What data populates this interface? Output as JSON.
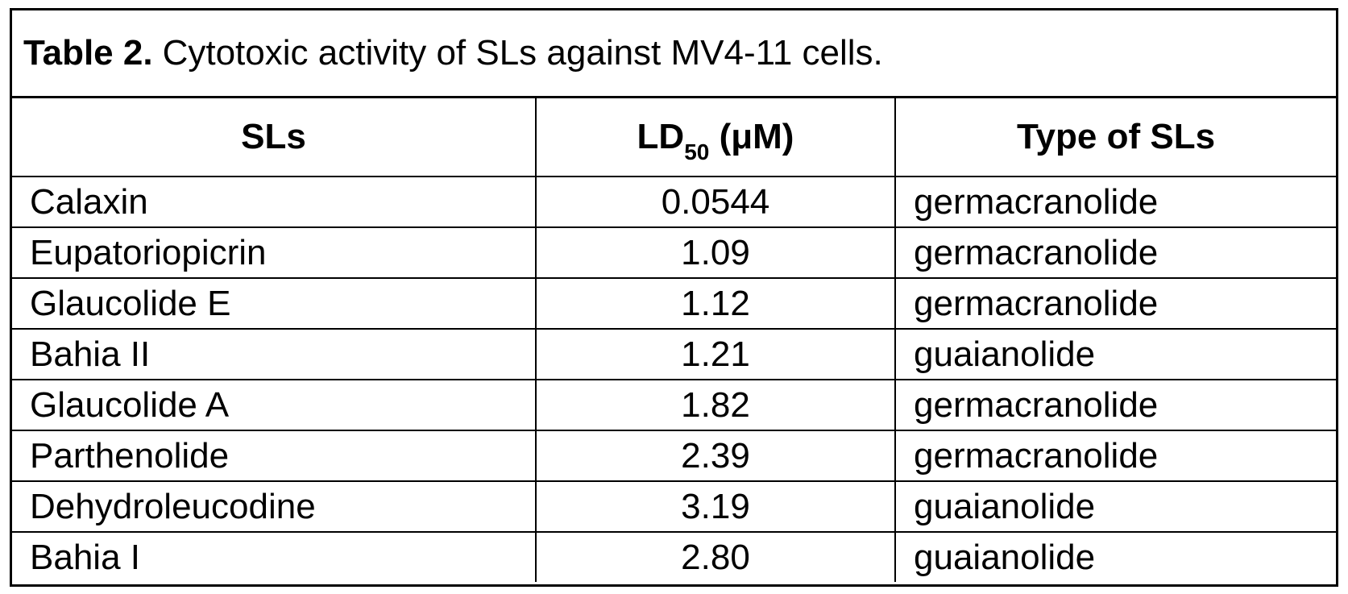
{
  "caption": {
    "label": "Table 2.",
    "text": "Cytotoxic activity of SLs against MV4-11 cells."
  },
  "headers": {
    "sls": "SLs",
    "ld_main": "LD",
    "ld_sub": "50",
    "ld_unit": " (μM)",
    "type": "Type of SLs"
  },
  "rows": [
    {
      "name": "Calaxin",
      "ld50": "0.0544",
      "type": "germacranolide"
    },
    {
      "name": "Eupatoriopicrin",
      "ld50": "1.09",
      "type": "germacranolide"
    },
    {
      "name": "Glaucolide E",
      "ld50": "1.12",
      "type": "germacranolide"
    },
    {
      "name": "Bahia II",
      "ld50": "1.21",
      "type": "guaianolide"
    },
    {
      "name": "Glaucolide A",
      "ld50": "1.82",
      "type": "germacranolide"
    },
    {
      "name": "Parthenolide",
      "ld50": "2.39",
      "type": "germacranolide"
    },
    {
      "name": "Dehydroleucodine",
      "ld50": "3.19",
      "type": "guaianolide"
    },
    {
      "name": "Bahia I",
      "ld50": "2.80",
      "type": "guaianolide"
    }
  ]
}
